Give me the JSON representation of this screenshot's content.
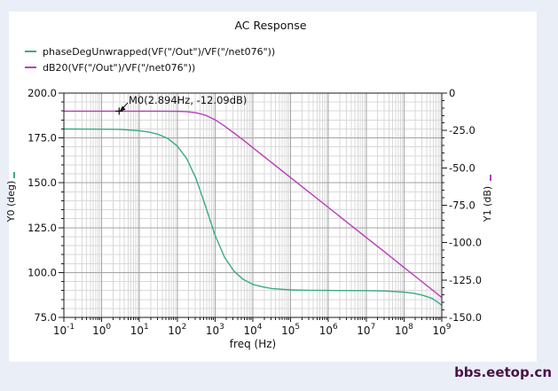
{
  "page": {
    "title": "AC Response",
    "watermark": "bbs.eetop.cn"
  },
  "colors": {
    "background": "#e9eef7",
    "panel": "#ffffff",
    "phase_trace": "#3aab81",
    "gain_trace": "#bb3cbb",
    "grid_major": "#a3a3a3",
    "grid_minor": "#d9d9d9",
    "axis_spine": "#1a1a1a",
    "watermark": "#4b1245"
  },
  "legend": [
    {
      "label": "phaseDegUnwrapped(VF(\"/Out\")/VF(\"/net076\"))",
      "color": "#3aab81"
    },
    {
      "label": "dB20(VF(\"/Out\")/VF(\"/net076\"))",
      "color": "#bb3cbb"
    }
  ],
  "chart_data": {
    "type": "line",
    "title": "AC Response",
    "xlabel": "freq (Hz)",
    "x_scale": "log",
    "x_log_range": [
      -1,
      9
    ],
    "x_ticks_exponents": [
      -1,
      0,
      1,
      2,
      3,
      4,
      5,
      6,
      7,
      8,
      9
    ],
    "grid": "major and minor, on",
    "legend_position": "top-left",
    "axes": {
      "left": {
        "label": "Y0 (deg)",
        "range": [
          75,
          200
        ],
        "ticks": [
          200,
          175,
          150,
          125,
          100,
          75
        ],
        "tick_labels": [
          "200.0",
          "175.0",
          "150.0",
          "125.0",
          "100.0",
          "75.0"
        ],
        "minor_step": 5,
        "indicator_color": "#3aab81"
      },
      "right": {
        "label": "Y1 (dB)",
        "range": [
          -150,
          0
        ],
        "ticks": [
          0,
          -25,
          -50,
          -75,
          -100,
          -125,
          -150
        ],
        "tick_labels": [
          "0",
          "-25.0",
          "-50.0",
          "-75.0",
          "-100.0",
          "-125.0",
          "-150.0"
        ],
        "minor_step": 5,
        "indicator_color": "#bb3cbb"
      }
    },
    "series": [
      {
        "name": "phaseDegUnwrapped(VF(\"/Out\")/VF(\"/net076\"))",
        "axis": "left",
        "color": "#3aab81",
        "points_log10f_deg": [
          [
            -1,
            180.0
          ],
          [
            0,
            179.9
          ],
          [
            0.5,
            179.8
          ],
          [
            1,
            179.0
          ],
          [
            1.25,
            178.3
          ],
          [
            1.5,
            177.0
          ],
          [
            1.75,
            174.7
          ],
          [
            2,
            170.5
          ],
          [
            2.25,
            163.5
          ],
          [
            2.5,
            152.2
          ],
          [
            2.75,
            136.8
          ],
          [
            3,
            120.9
          ],
          [
            3.25,
            108.6
          ],
          [
            3.5,
            100.8
          ],
          [
            3.75,
            96.1
          ],
          [
            4,
            93.4
          ],
          [
            4.25,
            92.1
          ],
          [
            4.5,
            91.1
          ],
          [
            5,
            90.3
          ],
          [
            5.5,
            90.1
          ],
          [
            6,
            90.0
          ],
          [
            6.5,
            89.95
          ],
          [
            7,
            89.9
          ],
          [
            7.5,
            89.7
          ],
          [
            8,
            89.1
          ],
          [
            8.25,
            88.5
          ],
          [
            8.5,
            87.3
          ],
          [
            8.75,
            85.5
          ],
          [
            9,
            81.8
          ]
        ]
      },
      {
        "name": "dB20(VF(\"/Out\")/VF(\"/net076\"))",
        "axis": "right",
        "color": "#bb3cbb",
        "points_log10f_dB": [
          [
            -1,
            -12.09
          ],
          [
            0,
            -12.09
          ],
          [
            1,
            -12.09
          ],
          [
            1.5,
            -12.1
          ],
          [
            2,
            -12.21
          ],
          [
            2.25,
            -12.4
          ],
          [
            2.5,
            -13.15
          ],
          [
            2.75,
            -14.83
          ],
          [
            3,
            -17.86
          ],
          [
            3.25,
            -21.99
          ],
          [
            3.5,
            -26.68
          ],
          [
            3.75,
            -31.5
          ],
          [
            4,
            -36.54
          ],
          [
            4.5,
            -46.5
          ],
          [
            5,
            -56.5
          ],
          [
            5.5,
            -66.5
          ],
          [
            6,
            -76.5
          ],
          [
            6.5,
            -86.5
          ],
          [
            7,
            -96.5
          ],
          [
            7.5,
            -106.5
          ],
          [
            8,
            -116.6
          ],
          [
            8.5,
            -126.6
          ],
          [
            9,
            -136.7
          ]
        ]
      }
    ],
    "marker": {
      "name": "M0",
      "label": "M0(2.894Hz, -12.09dB)",
      "freq_hz": 2.894,
      "log10_freq": 0.4615,
      "value_dB": -12.09,
      "series": "dB20(VF(\"/Out\")/VF(\"/net076\"))"
    }
  }
}
